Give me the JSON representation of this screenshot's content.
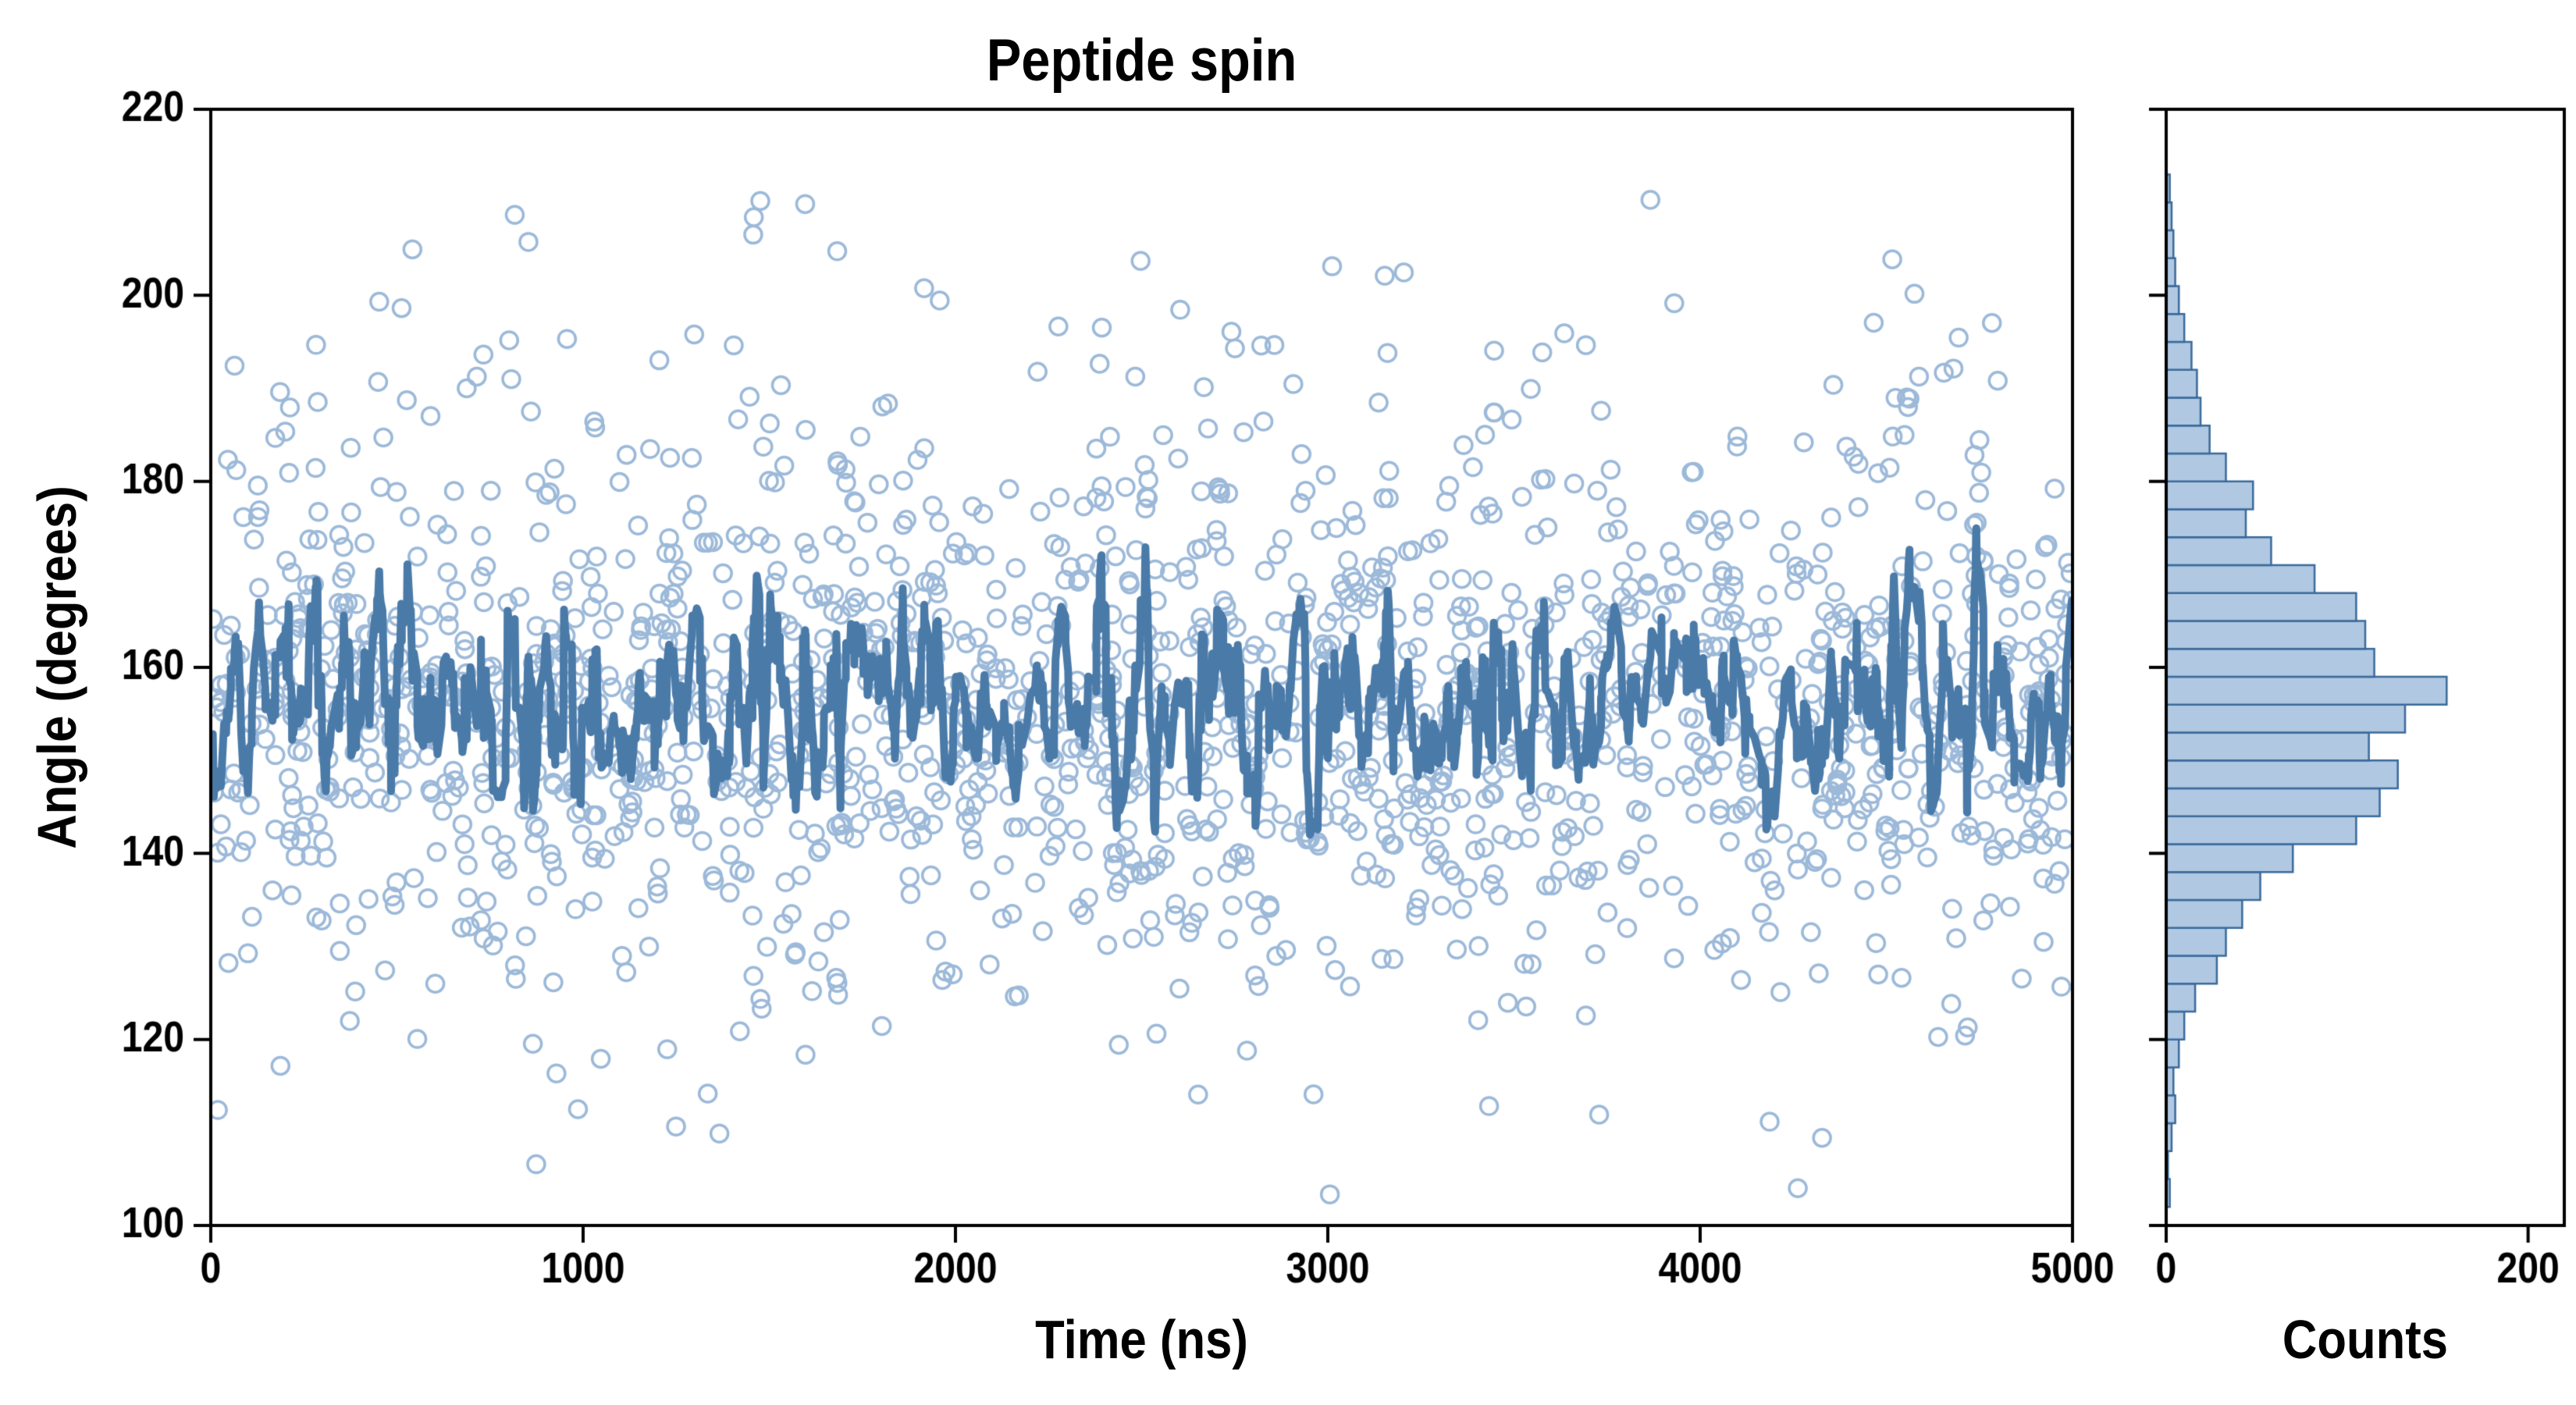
{
  "chart_data": {
    "type": "scatter",
    "title": "Peptide spin",
    "grid": false,
    "legend": null,
    "seed": 42,
    "main_plot": {
      "xlabel": "Time (ns)",
      "ylabel": "Angle (degrees)",
      "xlim": [
        0,
        5000
      ],
      "ylim": [
        100,
        220
      ],
      "x_ticks": [
        0,
        1000,
        2000,
        3000,
        4000,
        5000
      ],
      "y_ticks": [
        100,
        120,
        140,
        160,
        180,
        200,
        220
      ],
      "series": [
        {
          "name": "angle-samples",
          "type": "scatter",
          "marker": "open-circle",
          "color": "#9cb9d9",
          "n_points": 1723,
          "x_range": [
            0,
            5000
          ],
          "y_distribution": "sampled-from-histogram-bins"
        },
        {
          "name": "running-mean",
          "type": "line",
          "color": "#4a7aa8",
          "line_width": 10,
          "window": 9,
          "description": "moving average of the scatter samples"
        }
      ]
    },
    "histogram": {
      "xlabel": "Counts",
      "orientation": "horizontal",
      "xlim": [
        0,
        220
      ],
      "x_ticks": [
        0,
        200
      ],
      "ylim": [
        100,
        220
      ],
      "bin_width": 3,
      "bin_starts": [
        102,
        105,
        108,
        111,
        114,
        117,
        120,
        123,
        126,
        129,
        132,
        135,
        138,
        141,
        144,
        147,
        150,
        153,
        156,
        159,
        162,
        165,
        168,
        171,
        174,
        177,
        180,
        183,
        186,
        189,
        192,
        195,
        198,
        201,
        204,
        207,
        210
      ],
      "counts": [
        2,
        1,
        3,
        5,
        4,
        7,
        10,
        16,
        28,
        33,
        42,
        52,
        70,
        105,
        118,
        128,
        112,
        132,
        155,
        115,
        110,
        105,
        82,
        58,
        44,
        48,
        33,
        24,
        19,
        17,
        14,
        10,
        7,
        5,
        4,
        3,
        2
      ],
      "fill": "#b0c8e2",
      "edge": "#3a6a9a"
    },
    "frame_color": "#000000",
    "background": "#ffffff"
  }
}
